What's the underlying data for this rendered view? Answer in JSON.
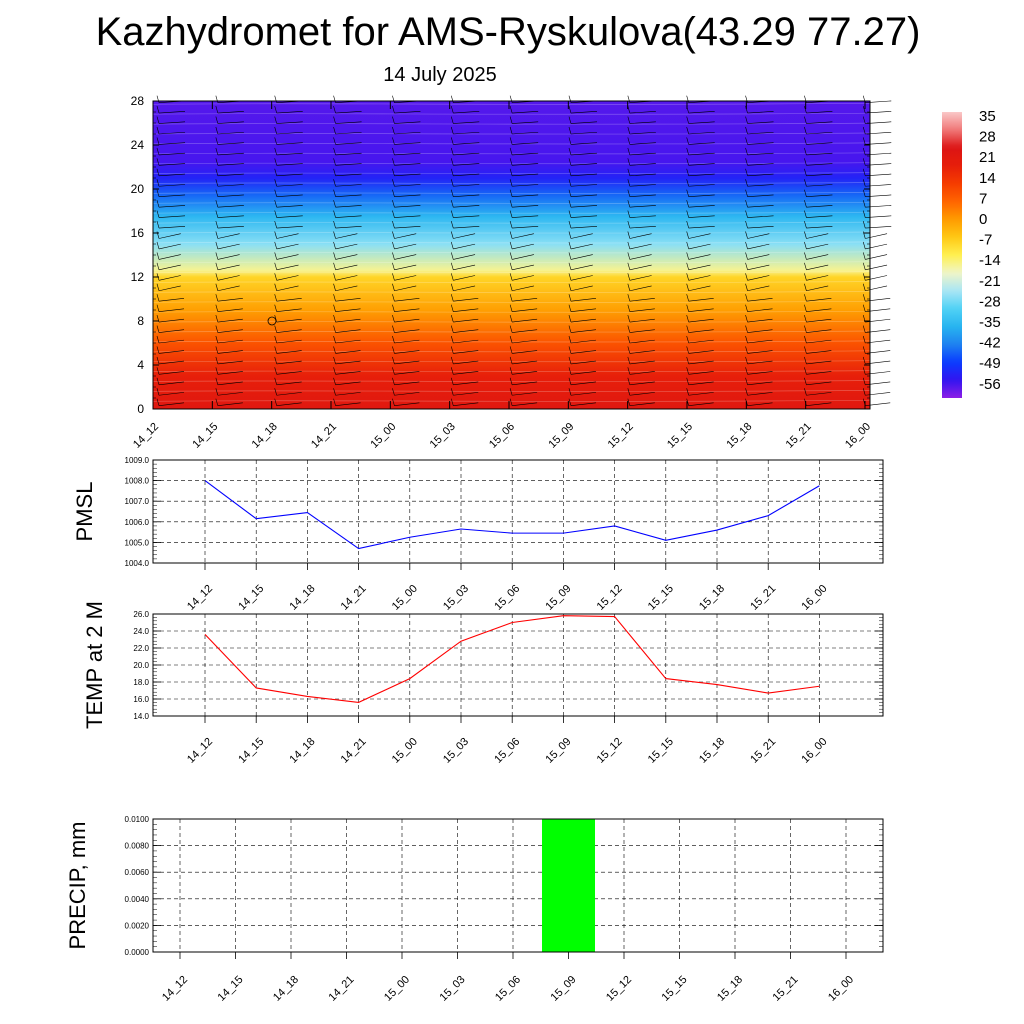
{
  "header": {
    "title": "Kazhydromet for AMS-Ryskulova(43.29 77.27)",
    "subtitle": "14 July 2025"
  },
  "chart_data": [
    {
      "type": "heatmap",
      "name": "upper-air cross-section (temperature shading with wind barbs)",
      "x_categories": [
        "14_12",
        "14_15",
        "14_18",
        "14_21",
        "15_00",
        "15_03",
        "15_06",
        "15_09",
        "15_12",
        "15_15",
        "15_18",
        "15_21",
        "16_00"
      ],
      "y_ticks": [
        0,
        4,
        8,
        12,
        16,
        20,
        24,
        28
      ],
      "ylim": [
        0,
        28
      ],
      "colorbar": {
        "labels": [
          35,
          28,
          21,
          14,
          7,
          0,
          -7,
          -14,
          -21,
          -28,
          -35,
          -42,
          -49,
          -56
        ],
        "range": [
          -63,
          42
        ],
        "colors": [
          "#8c1ee6",
          "#3214f0",
          "#0a3cff",
          "#1e82f0",
          "#28b4f0",
          "#50d2f5",
          "#aae6f5",
          "#f0f5c8",
          "#fff050",
          "#ffc814",
          "#ff9b00",
          "#ff6400",
          "#f53c00",
          "#e61e0a",
          "#dc1414",
          "#f07878",
          "#fac8c8"
        ]
      },
      "field_by_level": [
        {
          "y": 0,
          "value": 26
        },
        {
          "y": 3,
          "value": 22
        },
        {
          "y": 6,
          "value": 12
        },
        {
          "y": 9,
          "value": 2
        },
        {
          "y": 12,
          "value": -6
        },
        {
          "y": 12.6,
          "value": -14
        },
        {
          "y": 15,
          "value": -26
        },
        {
          "y": 17.5,
          "value": -36
        },
        {
          "y": 19.5,
          "value": -46
        },
        {
          "y": 21,
          "value": -54
        },
        {
          "y": 22.5,
          "value": -58
        },
        {
          "y": 28,
          "value": -59
        }
      ],
      "colors": {
        "shade_top": "#8c1ee6"
      }
    },
    {
      "type": "line",
      "x_categories": [
        "14_12",
        "14_15",
        "14_18",
        "14_21",
        "15_00",
        "15_03",
        "15_06",
        "15_09",
        "15_12",
        "15_15",
        "15_18",
        "15_21",
        "16_00"
      ],
      "y_ticks": [
        "1004.0",
        "1005.0",
        "1006.0",
        "1007.0",
        "1008.0",
        "1009.0"
      ],
      "ylabel": "PMSL",
      "ylim": [
        1004.0,
        1009.0
      ],
      "series": [
        {
          "values": [
            1008.0,
            1006.15,
            1006.45,
            1004.7,
            1005.25,
            1005.65,
            1005.45,
            1005.45,
            1005.8,
            1005.1,
            1005.6,
            1006.3,
            1007.75
          ],
          "color": "#0000ff"
        }
      ],
      "grid": true
    },
    {
      "type": "line",
      "x_categories": [
        "14_12",
        "14_15",
        "14_18",
        "14_21",
        "15_00",
        "15_03",
        "15_06",
        "15_09",
        "15_12",
        "15_15",
        "15_18",
        "15_21",
        "16_00"
      ],
      "y_ticks": [
        "14.0",
        "16.0",
        "18.0",
        "20.0",
        "22.0",
        "24.0",
        "26.0"
      ],
      "ylabel": "TEMP at 2 M",
      "ylim": [
        14.0,
        26.0
      ],
      "series": [
        {
          "values": [
            23.6,
            17.3,
            16.3,
            15.6,
            18.4,
            22.8,
            25.0,
            25.8,
            25.7,
            18.4,
            17.7,
            16.7,
            17.5
          ],
          "color": "#ff0000"
        }
      ],
      "grid": true
    },
    {
      "type": "bar",
      "x_categories": [
        "14_12",
        "14_15",
        "14_18",
        "14_21",
        "15_00",
        "15_03",
        "15_06",
        "15_09",
        "15_12",
        "15_15",
        "15_18",
        "15_21",
        "16_00"
      ],
      "y_ticks": [
        "0.0000",
        "0.0020",
        "0.0040",
        "0.0060",
        "0.0080",
        "0.0100"
      ],
      "ylabel": "PRECIP, mm",
      "ylim": [
        0,
        0.01
      ],
      "values": [
        0,
        0,
        0,
        0,
        0,
        0,
        0,
        0.01,
        0,
        0,
        0,
        0,
        0
      ],
      "color": "#00ff00",
      "grid": true
    }
  ]
}
